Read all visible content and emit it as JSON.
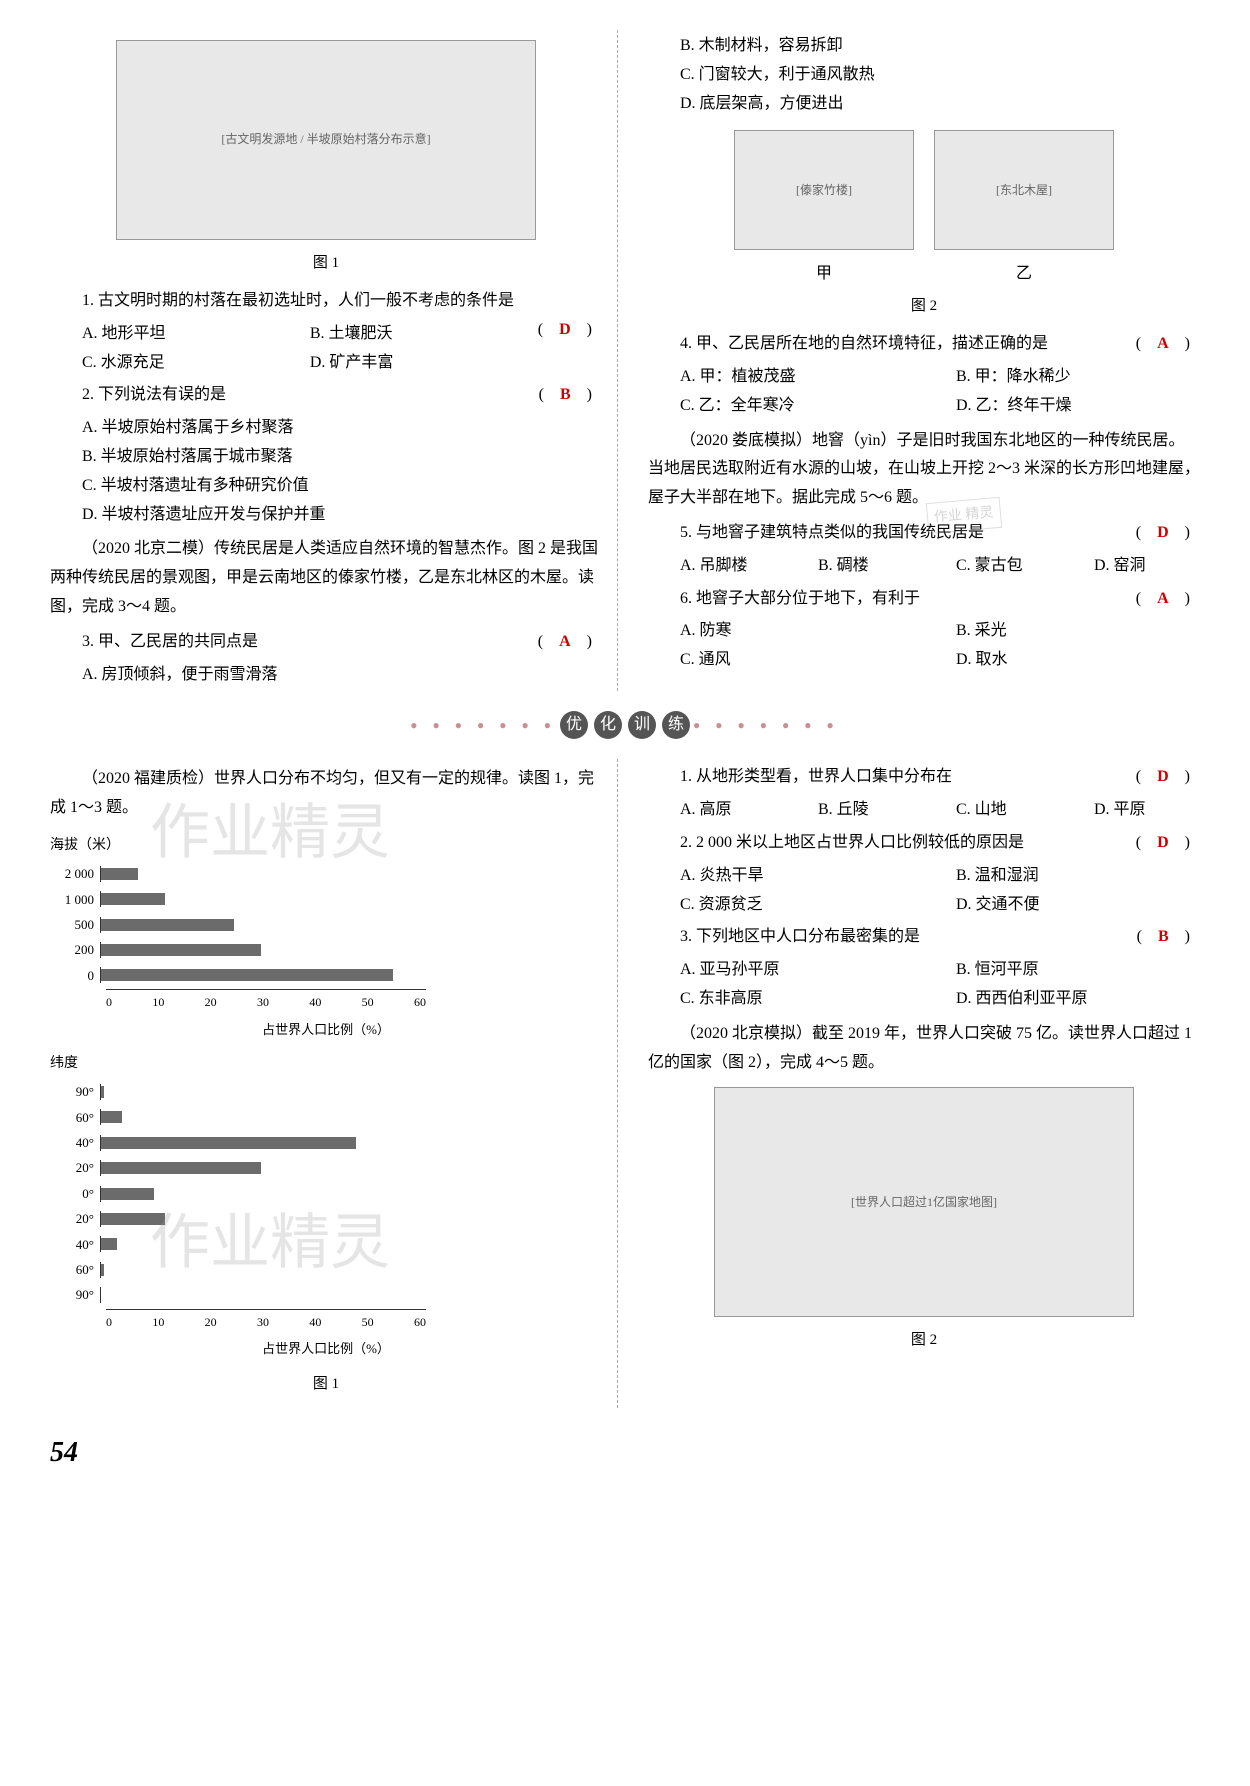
{
  "figure1_label": "图 1",
  "figure2_label": "图 2",
  "fig2_sub_a": "甲",
  "fig2_sub_b": "乙",
  "q1": {
    "text": "1. 古文明时期的村落在最初选址时，人们一般不考虑的条件是",
    "a": "A. 地形平坦",
    "b": "B. 土壤肥沃",
    "c": "C. 水源充足",
    "d": "D. 矿产丰富",
    "ans": "D"
  },
  "q2": {
    "text": "2. 下列说法有误的是",
    "a": "A. 半坡原始村落属于乡村聚落",
    "b": "B. 半坡原始村落属于城市聚落",
    "c": "C. 半坡村落遗址有多种研究价值",
    "d": "D. 半坡村落遗址应开发与保护并重",
    "ans": "B"
  },
  "passage1": "（2020 北京二模）传统民居是人类适应自然环境的智慧杰作。图 2 是我国两种传统民居的景观图，甲是云南地区的傣家竹楼，乙是东北林区的木屋。读图，完成 3～4 题。",
  "q3": {
    "text": "3. 甲、乙民居的共同点是",
    "a": "A. 房顶倾斜，便于雨雪滑落",
    "b": "B. 木制材料，容易拆卸",
    "c": "C. 门窗较大，利于通风散热",
    "d": "D. 底层架高，方便进出",
    "ans": "A"
  },
  "q4": {
    "text": "4. 甲、乙民居所在地的自然环境特征，描述正确的是",
    "a": "A. 甲：植被茂盛",
    "b": "B. 甲：降水稀少",
    "c": "C. 乙：全年寒冷",
    "d": "D. 乙：终年干燥",
    "ans": "A"
  },
  "passage2": "（2020 娄底模拟）地窨（yìn）子是旧时我国东北地区的一种传统民居。当地居民选取附近有水源的山坡，在山坡上开挖 2～3 米深的长方形凹地建屋，屋子大半部在地下。据此完成 5～6 题。",
  "q5": {
    "text": "5. 与地窨子建筑特点类似的我国传统民居是",
    "a": "A. 吊脚楼",
    "b": "B. 碉楼",
    "c": "C. 蒙古包",
    "d": "D. 窑洞",
    "ans": "D"
  },
  "q6": {
    "text": "6. 地窨子大部分位于地下，有利于",
    "a": "A. 防寒",
    "b": "B. 采光",
    "c": "C. 通风",
    "d": "D. 取水",
    "ans": "A"
  },
  "section_title": [
    "优",
    "化",
    "训",
    "练"
  ],
  "passage3": "（2020 福建质检）世界人口分布不均匀，但又有一定的规律。读图 1，完成 1～3 题。",
  "chart1": {
    "ylabel": "海拔（米）",
    "categories": [
      "2 000",
      "1 000",
      "500",
      "200",
      "0"
    ],
    "values": [
      7,
      12,
      25,
      30,
      55
    ],
    "xlabel": "占世界人口比例（%）",
    "xticks": [
      "0",
      "10",
      "20",
      "30",
      "40",
      "50",
      "60"
    ],
    "bar_color": "#6b6b6b",
    "max_x": 60
  },
  "chart2": {
    "ylabel": "纬度",
    "categories": [
      "90°",
      "60°",
      "40°",
      "20°",
      "0°",
      "20°",
      "40°",
      "60°",
      "90°"
    ],
    "values": [
      0.5,
      4,
      48,
      30,
      10,
      12,
      3,
      0.5,
      0
    ],
    "xlabel": "占世界人口比例（%）",
    "xticks": [
      "0",
      "10",
      "20",
      "30",
      "40",
      "50",
      "60"
    ],
    "bar_color": "#6b6b6b",
    "max_x": 60,
    "caption": "图 1"
  },
  "bq1": {
    "text": "1. 从地形类型看，世界人口集中分布在",
    "a": "A. 高原",
    "b": "B. 丘陵",
    "c": "C. 山地",
    "d": "D. 平原",
    "ans": "D"
  },
  "bq2": {
    "text": "2. 2 000 米以上地区占世界人口比例较低的原因是",
    "a": "A. 炎热干旱",
    "b": "B. 温和湿润",
    "c": "C. 资源贫乏",
    "d": "D. 交通不便",
    "ans": "D"
  },
  "bq3": {
    "text": "3. 下列地区中人口分布最密集的是",
    "a": "A. 亚马孙平原",
    "b": "B. 恒河平原",
    "c": "C. 东非高原",
    "d": "D. 西西伯利亚平原",
    "ans": "B"
  },
  "passage4": "（2020 北京模拟）截至 2019 年，世界人口突破 75 亿。读世界人口超过 1 亿的国家（图 2），完成 4～5 题。",
  "page_number": "54",
  "watermark_main": "作业精灵",
  "watermark_small": "作业\n精灵"
}
